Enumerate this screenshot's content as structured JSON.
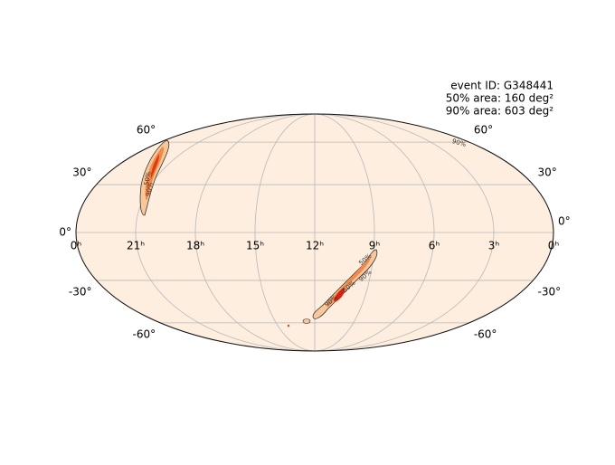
{
  "info": [
    "event ID: G348441",
    "50% area: 160 deg²",
    "90% area: 603 deg²"
  ],
  "ra_ticks": [
    {
      "value": 24,
      "label": "0ʰ"
    },
    {
      "value": 21,
      "label": "21ʰ"
    },
    {
      "value": 18,
      "label": "18ʰ"
    },
    {
      "value": 15,
      "label": "15ʰ"
    },
    {
      "value": 12,
      "label": "12ʰ"
    },
    {
      "value": 9,
      "label": "9ʰ"
    },
    {
      "value": 6,
      "label": "6ʰ"
    },
    {
      "value": 3,
      "label": "3ʰ"
    },
    {
      "value": 0,
      "label": "0ʰ"
    }
  ],
  "dec_ticks": [
    {
      "value": 60,
      "label": "60°"
    },
    {
      "value": 30,
      "label": "30°"
    },
    {
      "value": 0,
      "label": "0°"
    },
    {
      "value": -30,
      "label": "-30°"
    },
    {
      "value": -60,
      "label": "-60°"
    }
  ],
  "contour_labels": [
    "90%",
    "50%",
    "90%",
    "50%",
    "90%",
    "50%",
    "90%"
  ]
}
